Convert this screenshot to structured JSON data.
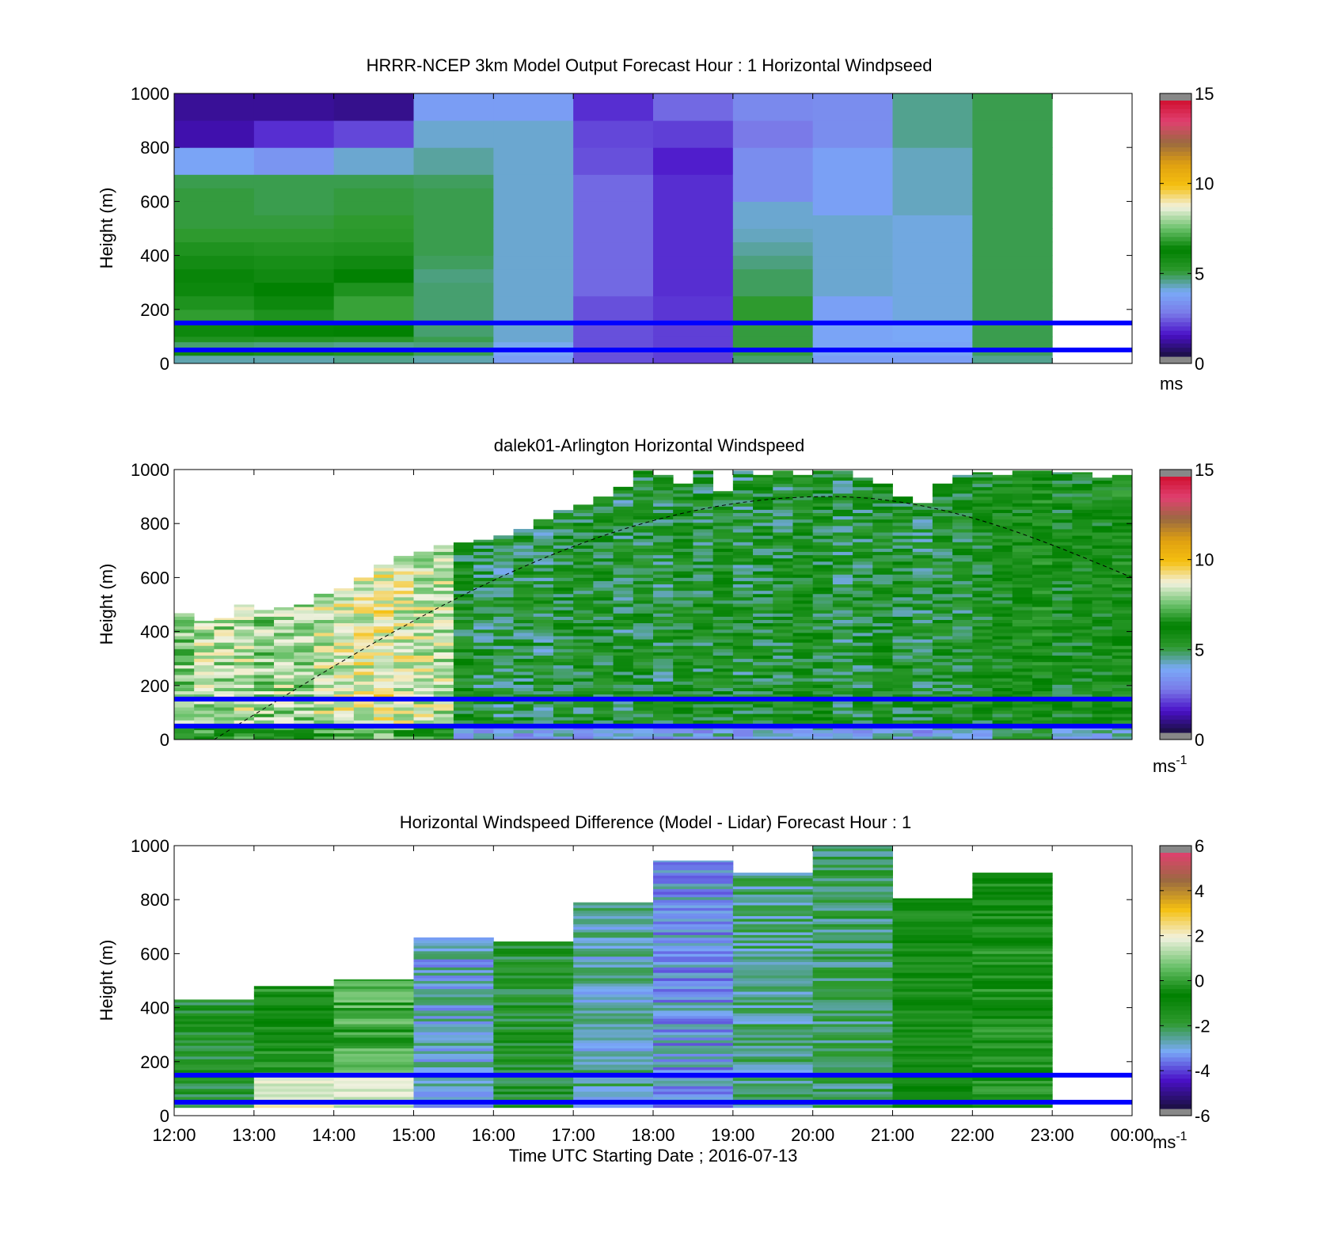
{
  "figure": {
    "xlabel": "Time UTC  Starting Date ; 2016-07-13",
    "x_ticks": [
      "12:00",
      "13:00",
      "14:00",
      "15:00",
      "16:00",
      "17:00",
      "18:00",
      "19:00",
      "20:00",
      "21:00",
      "22:00",
      "23:00",
      "00:00"
    ],
    "reference_heights_m": [
      50,
      150
    ],
    "reference_line_color": "#0000ff",
    "colors": {
      "speed_scale": [
        "#1a1040",
        "#4a10c8",
        "#7a7ae8",
        "#7aaaf8",
        "#2e9a2e",
        "#008000",
        "#6cc26c",
        "#f2f2e0",
        "#f5c010",
        "#e0a010",
        "#9a6a40",
        "#e04070",
        "#d01030"
      ],
      "diff_scale": [
        "#1a1040",
        "#4a10c8",
        "#7aaaf8",
        "#2e9a2e",
        "#008000",
        "#6cc26c",
        "#f2f2e0",
        "#f5c010",
        "#9a6a40",
        "#e04070"
      ],
      "missing": "#888888"
    }
  },
  "chart_data": [
    {
      "type": "heatmap",
      "title": "HRRR-NCEP 3km Model Output   Forecast Hour : 1 Horizontal Windpseed",
      "xlabel": "",
      "ylabel": "Height (m)",
      "ylim": [
        0,
        1000
      ],
      "y_ticks": [
        "0",
        "200",
        "400",
        "600",
        "800",
        "1000"
      ],
      "colorbar": {
        "label": "ms",
        "superscript": "",
        "range": [
          0,
          15
        ],
        "ticks": [
          "0",
          "5",
          "10",
          "15"
        ],
        "scale": "speed"
      },
      "hours": [
        12,
        13,
        14,
        15,
        16,
        17,
        18,
        19,
        20,
        21,
        22
      ],
      "bands_m": [
        0,
        30,
        50,
        80,
        100,
        150,
        200,
        250,
        300,
        350,
        400,
        450,
        500,
        550,
        600,
        650,
        700,
        800,
        900,
        1000
      ],
      "values": [
        [
          4.2,
          5.8,
          4.6,
          5.4,
          6.4,
          6.8,
          6.6,
          6.4,
          6.0,
          5.7,
          5.4,
          5.0,
          4.9,
          4.9,
          4.9,
          4.8,
          3.6,
          1.0,
          0.8
        ],
        [
          4.2,
          5.6,
          4.5,
          5.3,
          6.3,
          6.6,
          6.4,
          6.2,
          5.8,
          5.6,
          5.3,
          5.0,
          4.9,
          4.8,
          4.8,
          4.8,
          3.2,
          1.6,
          0.8
        ],
        [
          4.4,
          5.4,
          4.4,
          5.2,
          6.2,
          6.9,
          6.9,
          6.6,
          6.2,
          5.8,
          5.4,
          5.1,
          5.0,
          4.9,
          4.9,
          4.8,
          4.0,
          1.9,
          0.7
        ],
        [
          4.2,
          4.8,
          4.5,
          4.8,
          4.6,
          4.6,
          4.6,
          4.6,
          4.5,
          4.7,
          4.8,
          4.8,
          4.8,
          4.8,
          4.8,
          4.7,
          4.3,
          4.0,
          3.4
        ],
        [
          3.4,
          3.6,
          3.8,
          4.0,
          4.0,
          4.0,
          4.0,
          4.0,
          4.0,
          4.0,
          4.0,
          4.0,
          4.0,
          4.0,
          4.0,
          4.0,
          4.0,
          4.0,
          3.4
        ],
        [
          2.0,
          2.0,
          2.0,
          2.0,
          2.0,
          2.0,
          2.0,
          2.3,
          2.3,
          2.3,
          2.3,
          2.3,
          2.3,
          2.3,
          2.3,
          2.3,
          2.0,
          1.9,
          1.6
        ],
        [
          1.8,
          1.8,
          1.8,
          1.8,
          1.8,
          1.7,
          1.7,
          1.6,
          1.6,
          1.6,
          1.6,
          1.6,
          1.6,
          1.6,
          1.6,
          1.6,
          1.4,
          1.8,
          2.3
        ],
        [
          4.6,
          4.9,
          4.9,
          4.9,
          4.9,
          5.0,
          5.0,
          4.7,
          4.7,
          4.5,
          4.3,
          4.1,
          4.0,
          4.0,
          3.0,
          3.0,
          3.0,
          2.5,
          2.9
        ],
        [
          3.4,
          3.6,
          3.6,
          3.6,
          3.6,
          3.5,
          3.5,
          4.0,
          4.0,
          4.0,
          4.0,
          4.0,
          4.0,
          3.5,
          3.5,
          3.5,
          3.5,
          3.0,
          3.0
        ],
        [
          3.4,
          3.6,
          3.6,
          3.7,
          3.7,
          3.9,
          3.9,
          3.9,
          3.9,
          3.9,
          3.9,
          3.9,
          3.9,
          4.1,
          4.1,
          4.1,
          4.1,
          4.4,
          4.4
        ],
        [
          4.4,
          4.7,
          4.8,
          4.8,
          4.8,
          4.8,
          4.8,
          4.8,
          4.8,
          4.8,
          4.8,
          4.8,
          4.8,
          4.8,
          4.8,
          4.8,
          4.8,
          4.8,
          4.8
        ]
      ]
    },
    {
      "type": "heatmap",
      "title": "dalek01-Arlington  Horizontal Windspeed",
      "xlabel": "",
      "ylabel": "Height (m)",
      "ylim": [
        0,
        1000
      ],
      "y_ticks": [
        "0",
        "200",
        "400",
        "600",
        "800",
        "1000"
      ],
      "colorbar": {
        "label": "ms",
        "superscript": "-1",
        "range": [
          0,
          15
        ],
        "ticks": [
          "0",
          "5",
          "10",
          "15"
        ],
        "scale": "speed"
      },
      "columns_per_hour": 4,
      "start_hour": 12,
      "end_hour": 23.75,
      "column_top_m": [
        470,
        440,
        450,
        500,
        480,
        490,
        500,
        540,
        560,
        600,
        650,
        680,
        700,
        720,
        730,
        740,
        760,
        780,
        820,
        850,
        870,
        900,
        940,
        1000,
        980,
        950,
        1000,
        920,
        1000,
        980,
        1000,
        980,
        1000,
        1000,
        970,
        950,
        900,
        880,
        950,
        980,
        990,
        980,
        1000,
        1000,
        990,
        990,
        970,
        980
      ],
      "column_mean_mps": [
        7.6,
        8.2,
        8.0,
        8.3,
        7.8,
        8.0,
        7.9,
        8.4,
        8.6,
        8.7,
        8.9,
        8.6,
        8.4,
        8.2,
        5.3,
        5.0,
        4.9,
        5.0,
        4.9,
        5.2,
        5.1,
        5.3,
        5.0,
        5.2,
        5.0,
        5.4,
        5.1,
        5.5,
        5.0,
        5.2,
        5.1,
        5.6,
        5.3,
        5.0,
        5.1,
        5.4,
        5.2,
        5.0,
        5.3,
        5.1,
        5.5,
        5.6,
        5.8,
        6.0,
        5.4,
        5.6,
        5.7,
        5.9
      ],
      "boundary_layer_curve": {
        "start": [
          12.5,
          0
        ],
        "peak": [
          20.2,
          900
        ],
        "end": [
          24,
          600
        ]
      }
    },
    {
      "type": "heatmap",
      "title": "Horizontal Windspeed Difference (Model - Lidar) Forecast Hour : 1",
      "xlabel": "Time UTC  Starting Date ; 2016-07-13",
      "ylabel": "Height (m)",
      "ylim": [
        0,
        1000
      ],
      "y_ticks": [
        "0",
        "200",
        "400",
        "600",
        "800",
        "1000"
      ],
      "colorbar": {
        "label": "ms",
        "superscript": "-1",
        "range": [
          -6,
          6
        ],
        "ticks": [
          "-6",
          "-4",
          "-2",
          "0",
          "2",
          "4",
          "6"
        ],
        "scale": "diff"
      },
      "hours": [
        12,
        13,
        14,
        15,
        16,
        17,
        18,
        19,
        20,
        21,
        22
      ],
      "column_top_m": [
        430,
        480,
        505,
        660,
        645,
        790,
        945,
        900,
        1000,
        805,
        900
      ],
      "column_mean_diff": [
        -1.8,
        -0.6,
        0.2,
        -3.0,
        -1.8,
        -2.8,
        -3.3,
        -2.6,
        -2.3,
        -1.2,
        -0.6
      ]
    }
  ]
}
